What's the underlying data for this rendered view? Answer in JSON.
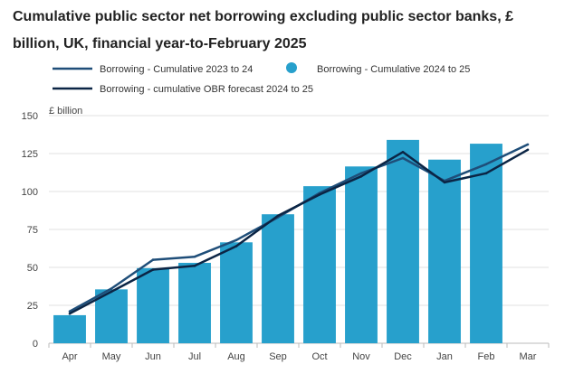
{
  "chart_data": {
    "type": "bar",
    "title": "Cumulative public sector net borrowing excluding public sector banks, £ billion, UK, financial year-to-February 2025",
    "y_unit_label": "£ billion",
    "ylim": [
      0,
      150
    ],
    "y_ticks": [
      0,
      25,
      50,
      75,
      100,
      125,
      150
    ],
    "grid": true,
    "legend_position": "top-left",
    "categories": [
      "Apr",
      "May",
      "Jun",
      "Jul",
      "Aug",
      "Sep",
      "Oct",
      "Nov",
      "Dec",
      "Jan",
      "Feb",
      "Mar"
    ],
    "series": [
      {
        "name": "Borrowing - Cumulative 2023 to 24",
        "kind": "line",
        "color": "#1f4e79",
        "values": [
          21,
          36,
          55,
          57,
          68,
          83,
          99,
          112,
          122,
          107,
          118,
          131
        ]
      },
      {
        "name": "Borrowing - Cumulative 2024 to 25",
        "kind": "bar",
        "color": "#27a0cc",
        "values": [
          18.5,
          35.5,
          49.5,
          53,
          66.5,
          85,
          103.5,
          116.5,
          134,
          121,
          131.5,
          null
        ]
      },
      {
        "name": "Borrowing - cumulative OBR forecast 2024 to 25",
        "kind": "line",
        "color": "#0b2545",
        "values": [
          19.5,
          34,
          48.5,
          51,
          64,
          84,
          98,
          110,
          126,
          106,
          112,
          127.5
        ]
      }
    ]
  }
}
